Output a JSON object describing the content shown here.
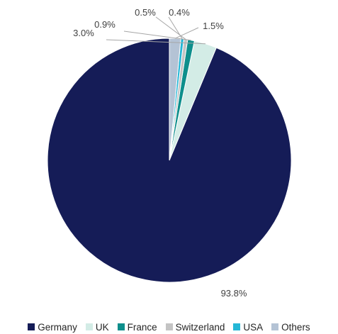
{
  "chart_data": {
    "type": "pie",
    "title": "",
    "categories": [
      "Germany",
      "UK",
      "France",
      "Switzerland",
      "USA",
      "Others"
    ],
    "values": [
      93.8,
      3.0,
      0.9,
      0.5,
      0.4,
      1.5
    ],
    "value_labels": [
      "93.8%",
      "3.0%",
      "0.9%",
      "0.5%",
      "0.4%",
      "1.5%"
    ],
    "colors": [
      "#151C57",
      "#D3ECE6",
      "#0E8F8C",
      "#C4C4C4",
      "#25B7D6",
      "#B4C3D5"
    ],
    "start_angle_deg": 0,
    "direction": "counterclockwise",
    "legend_position": "bottom"
  }
}
